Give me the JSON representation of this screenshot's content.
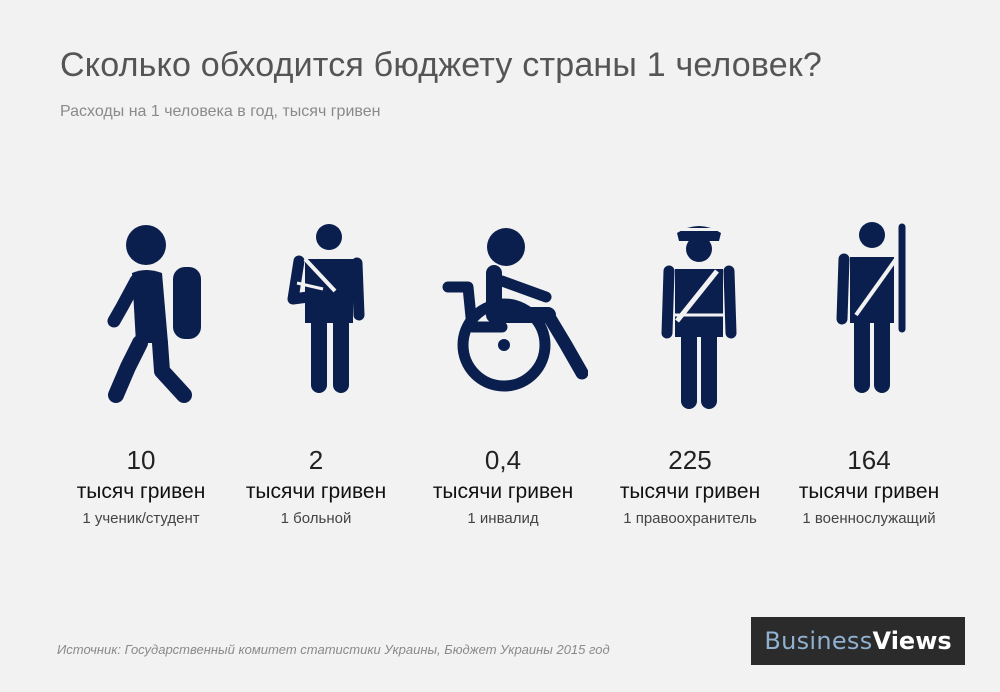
{
  "title": "Сколько обходится бюджету страны 1 человек?",
  "subtitle": "Расходы на 1 человека в год, тысяч гривен",
  "source": "Источник:  Государственный комитет статистики Украины, Бюджет Украины 2015 год",
  "logo": {
    "part1": "Business",
    "part2": "Views"
  },
  "colors": {
    "icon": "#0b1f4e",
    "background": "#f2f2f2",
    "logo_bg": "#2b2b2b"
  },
  "chart_data": {
    "type": "table",
    "title": "Сколько обходится бюджету страны 1 человек?",
    "subtitle": "Расходы на 1 человека в год, тысяч гривен",
    "items": [
      {
        "icon": "student-backpack-icon",
        "value": "10",
        "unit": "тысяч гривен",
        "label": "1 ученик/студент"
      },
      {
        "icon": "patient-arm-sling-icon",
        "value": "2",
        "unit": "тысячи гривен",
        "label": "1 больной"
      },
      {
        "icon": "wheelchair-icon",
        "value": "0,4",
        "unit": "тысячи гривен",
        "label": "1 инвалид"
      },
      {
        "icon": "police-officer-icon",
        "value": "225",
        "unit": "тысячи гривен",
        "label": "1 правоохранитель"
      },
      {
        "icon": "soldier-rifle-icon",
        "value": "164",
        "unit": "тысячи гривен",
        "label": "1 военнослужащий"
      }
    ]
  }
}
